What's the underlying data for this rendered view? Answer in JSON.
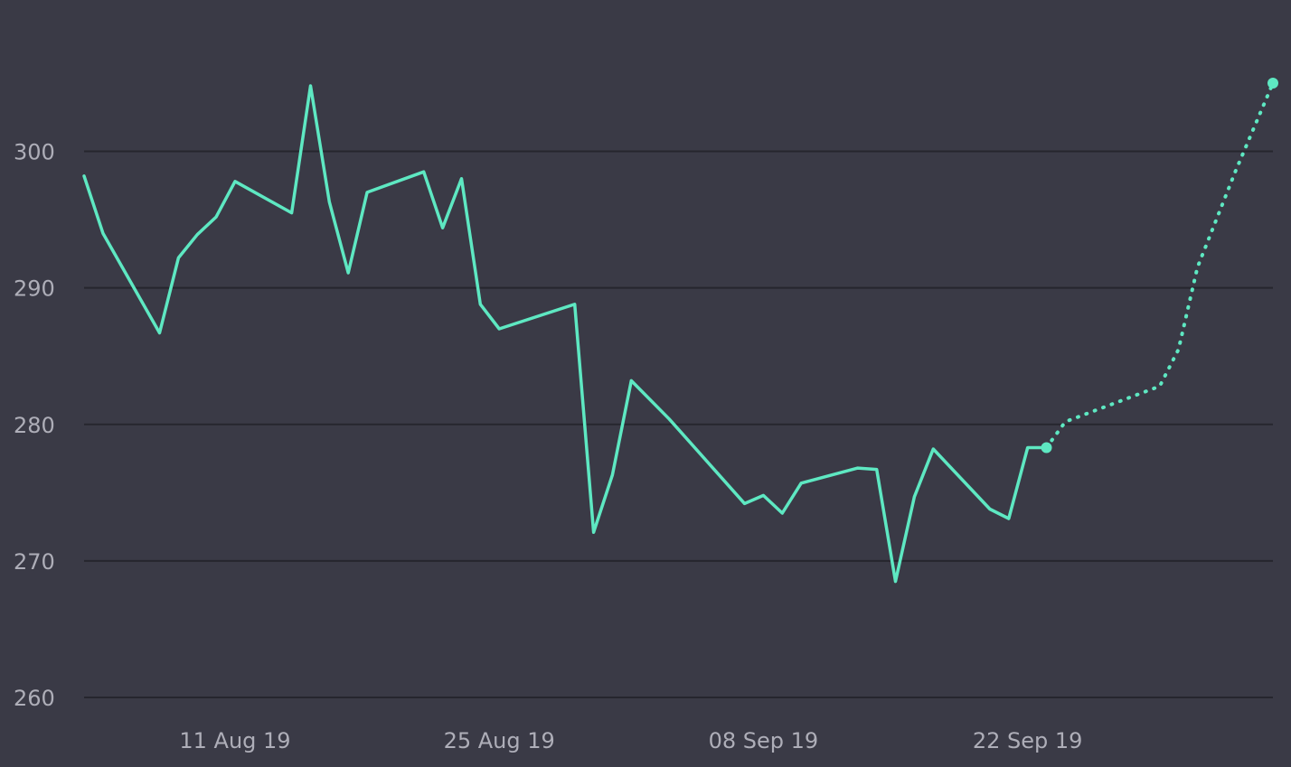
{
  "chart_data": {
    "type": "line",
    "title": "",
    "xlabel": "",
    "ylabel": "",
    "ylim": [
      260,
      305
    ],
    "yticks": [
      260,
      270,
      280,
      290,
      300
    ],
    "xlim": [
      "2019-08-03",
      "2019-10-05"
    ],
    "xticks": [
      {
        "date": "2019-08-11",
        "label": "11 Aug 19"
      },
      {
        "date": "2019-08-25",
        "label": "25 Aug 19"
      },
      {
        "date": "2019-09-08",
        "label": "08 Sep 19"
      },
      {
        "date": "2019-09-22",
        "label": "22 Sep 19"
      }
    ],
    "grid": true,
    "colors": {
      "background": "#3a3a46",
      "series": "#5ee8c2",
      "grid": "#26262e",
      "text": "#aeaeb8"
    },
    "series": [
      {
        "style": "solid",
        "x": [
          "2019-08-03",
          "2019-08-04",
          "2019-08-07",
          "2019-08-08",
          "2019-08-09",
          "2019-08-10",
          "2019-08-11",
          "2019-08-14",
          "2019-08-15",
          "2019-08-16",
          "2019-08-17",
          "2019-08-18",
          "2019-08-21",
          "2019-08-22",
          "2019-08-23",
          "2019-08-24",
          "2019-08-25",
          "2019-08-29",
          "2019-08-30",
          "2019-08-31",
          "2019-09-01",
          "2019-09-03",
          "2019-09-07",
          "2019-09-08",
          "2019-09-09",
          "2019-09-10",
          "2019-09-13",
          "2019-09-14",
          "2019-09-15",
          "2019-09-16",
          "2019-09-17",
          "2019-09-20",
          "2019-09-21",
          "2019-09-22",
          "2019-09-23"
        ],
        "y": [
          298.2,
          294.0,
          286.7,
          292.2,
          293.9,
          295.2,
          297.8,
          295.5,
          304.8,
          296.3,
          291.1,
          297.0,
          298.5,
          294.4,
          298.0,
          288.8,
          287.0,
          288.8,
          272.1,
          276.3,
          283.2,
          280.4,
          274.2,
          274.8,
          273.5,
          275.7,
          276.8,
          276.7,
          268.5,
          274.7,
          278.2,
          273.8,
          273.1,
          278.3,
          278.3
        ]
      },
      {
        "style": "dotted",
        "x": [
          "2019-09-23",
          "2019-09-24",
          "2019-09-29",
          "2019-09-30",
          "2019-10-01",
          "2019-10-03",
          "2019-10-05"
        ],
        "y": [
          278.3,
          280.2,
          282.8,
          285.5,
          291.5,
          298.5,
          305.0
        ]
      }
    ]
  }
}
